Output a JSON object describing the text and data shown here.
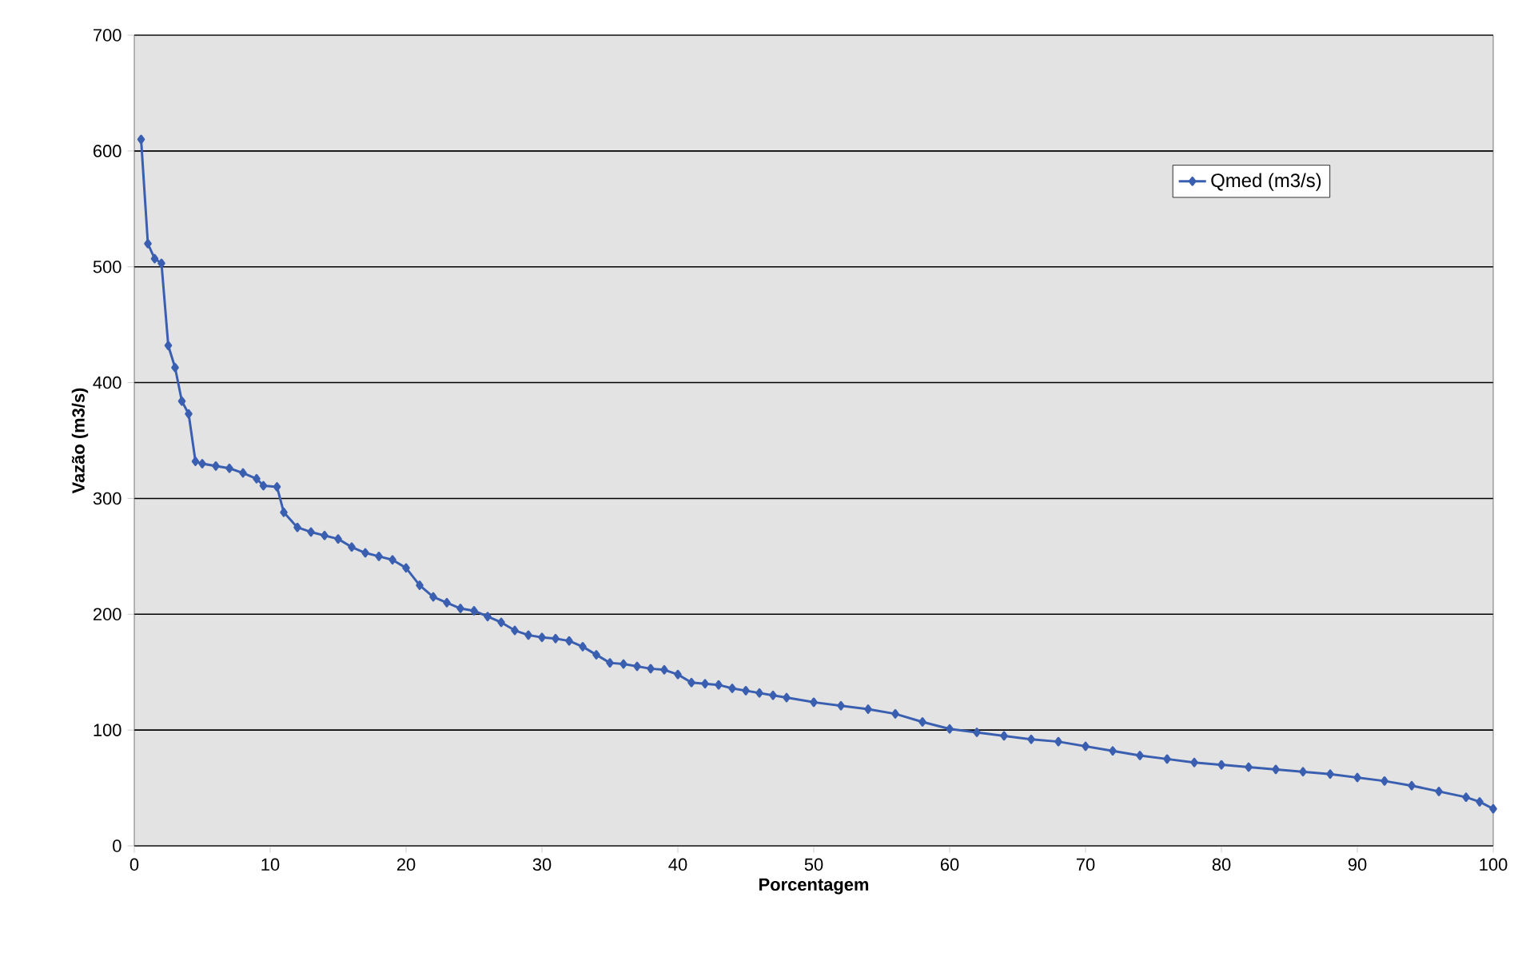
{
  "chart_data": {
    "type": "line",
    "xlabel": "Porcentagem",
    "ylabel": "Vazão (m3/s)",
    "xlim": [
      0,
      100
    ],
    "ylim": [
      0,
      700
    ],
    "xticks": [
      0,
      10,
      20,
      30,
      40,
      50,
      60,
      70,
      80,
      90,
      100
    ],
    "yticks": [
      0,
      100,
      200,
      300,
      400,
      500,
      600,
      700
    ],
    "grid": "y",
    "legend": "top right",
    "marker": "diamond",
    "series": [
      {
        "name": "Qmed (m3/s)",
        "color": "#3a5fb0",
        "x": [
          0.5,
          1,
          1.5,
          2,
          2.5,
          3,
          3.5,
          4,
          4.5,
          5,
          6,
          7,
          8,
          9,
          9.5,
          10.5,
          11,
          12,
          13,
          14,
          15,
          16,
          17,
          18,
          19,
          20,
          21,
          22,
          23,
          24,
          25,
          26,
          27,
          28,
          29,
          30,
          31,
          32,
          33,
          34,
          35,
          36,
          37,
          38,
          39,
          40,
          41,
          42,
          43,
          44,
          45,
          46,
          47,
          48,
          50,
          52,
          54,
          56,
          58,
          60,
          62,
          64,
          66,
          68,
          70,
          72,
          74,
          76,
          78,
          80,
          82,
          84,
          86,
          88,
          90,
          92,
          94,
          96,
          98,
          99,
          100
        ],
        "values": [
          610,
          520,
          507,
          503,
          432,
          413,
          384,
          373,
          332,
          330,
          328,
          326,
          322,
          317,
          311,
          310,
          288,
          275,
          271,
          268,
          265,
          258,
          253,
          250,
          247,
          240,
          225,
          215,
          210,
          205,
          203,
          198,
          193,
          186,
          182,
          180,
          179,
          177,
          172,
          165,
          158,
          157,
          155,
          153,
          152,
          148,
          141,
          140,
          139,
          136,
          134,
          132,
          130,
          128,
          124,
          121,
          118,
          114,
          107,
          101,
          98,
          95,
          92,
          90,
          86,
          82,
          78,
          75,
          72,
          70,
          68,
          66,
          64,
          62,
          59,
          56,
          52,
          47,
          42,
          38,
          32
        ]
      }
    ]
  }
}
